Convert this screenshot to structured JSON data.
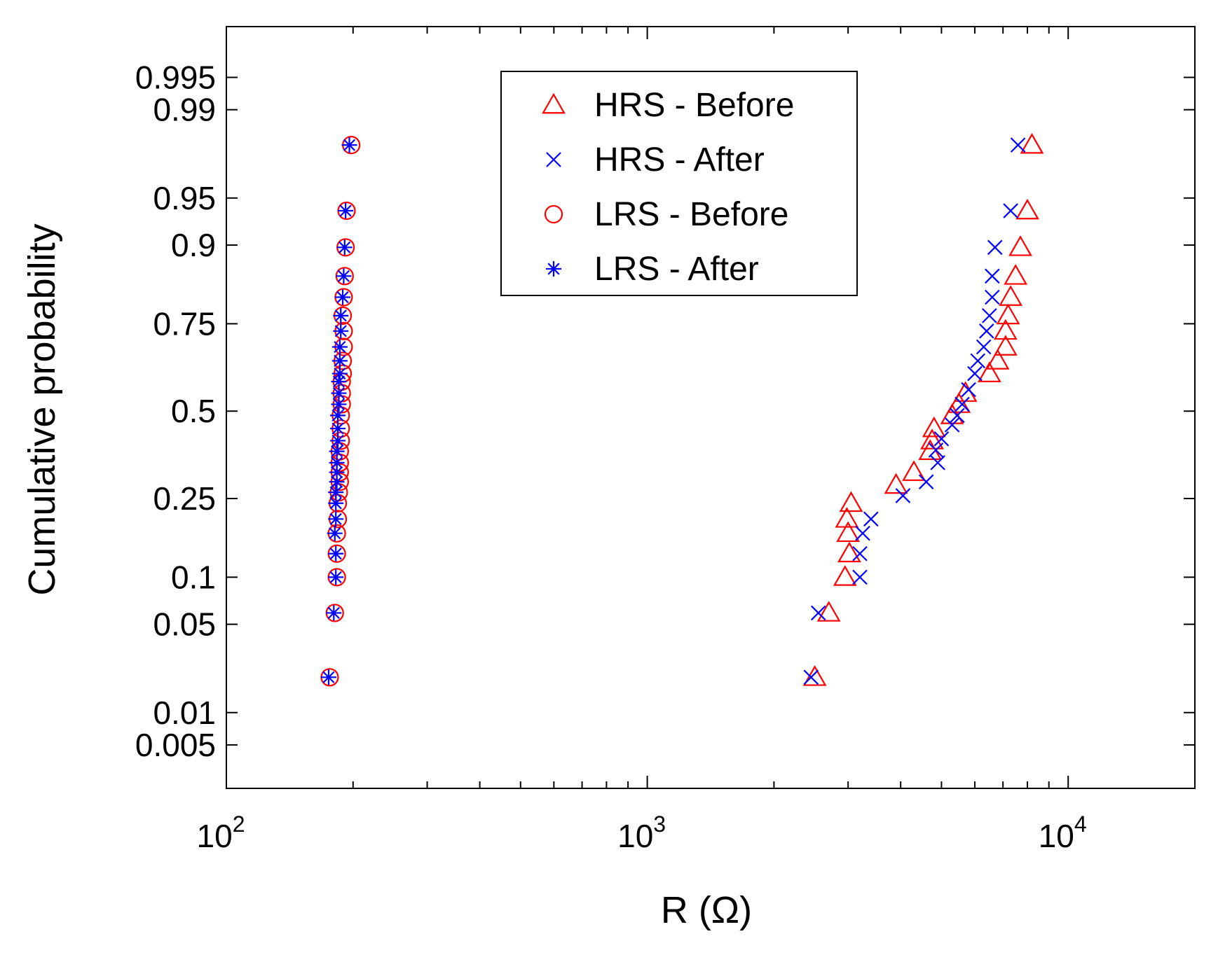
{
  "chart_data": {
    "type": "scatter",
    "title": "",
    "xlabel": "R (Ω)",
    "ylabel": "Cumulative probability",
    "xscale": "log",
    "yscale": "normal-probability",
    "xlim": [
      100,
      20000
    ],
    "ylim": [
      0.0018,
      0.9985
    ],
    "x_ticks": [
      {
        "value": 100,
        "base": "10",
        "exp": "2"
      },
      {
        "value": 1000,
        "base": "10",
        "exp": "3"
      },
      {
        "value": 10000,
        "base": "10",
        "exp": "4"
      }
    ],
    "y_ticks": [
      {
        "value": 0.005,
        "label": "0.005"
      },
      {
        "value": 0.01,
        "label": "0.01"
      },
      {
        "value": 0.05,
        "label": "0.05"
      },
      {
        "value": 0.1,
        "label": "0.1"
      },
      {
        "value": 0.25,
        "label": "0.25"
      },
      {
        "value": 0.5,
        "label": "0.5"
      },
      {
        "value": 0.75,
        "label": "0.75"
      },
      {
        "value": 0.9,
        "label": "0.9"
      },
      {
        "value": 0.95,
        "label": "0.95"
      },
      {
        "value": 0.99,
        "label": "0.99"
      },
      {
        "value": 0.995,
        "label": "0.995"
      }
    ],
    "legend_position": "top-center",
    "series": [
      {
        "name": "HRS - Before",
        "marker": "triangle",
        "color": "#ff0000",
        "points": [
          [
            2500,
            0.02
          ],
          [
            2700,
            0.0597
          ],
          [
            2950,
            0.1
          ],
          [
            3020,
            0.1357
          ],
          [
            3000,
            0.1729
          ],
          [
            2980,
            0.2025
          ],
          [
            3050,
            0.2386
          ],
          [
            3900,
            0.2841
          ],
          [
            4300,
            0.3185
          ],
          [
            4700,
            0.3783
          ],
          [
            4750,
            0.4098
          ],
          [
            4800,
            0.4466
          ],
          [
            5300,
            0.4867
          ],
          [
            5500,
            0.5211
          ],
          [
            5700,
            0.5551
          ],
          [
            6500,
            0.6141
          ],
          [
            6800,
            0.6511
          ],
          [
            7100,
            0.6899
          ],
          [
            7100,
            0.7318
          ],
          [
            7200,
            0.7694
          ],
          [
            7300,
            0.8104
          ],
          [
            7500,
            0.8514
          ],
          [
            7700,
            0.8969
          ],
          [
            8000,
            0.939
          ],
          [
            8200,
            0.98
          ]
        ]
      },
      {
        "name": "HRS - After",
        "marker": "x",
        "color": "#0000ff",
        "points": [
          [
            2450,
            0.02
          ],
          [
            2550,
            0.0597
          ],
          [
            3200,
            0.1
          ],
          [
            3200,
            0.1357
          ],
          [
            3250,
            0.1729
          ],
          [
            3400,
            0.2025
          ],
          [
            4050,
            0.2571
          ],
          [
            4600,
            0.2927
          ],
          [
            4900,
            0.3454
          ],
          [
            4850,
            0.3818
          ],
          [
            5000,
            0.4154
          ],
          [
            5300,
            0.4577
          ],
          [
            5450,
            0.4867
          ],
          [
            5600,
            0.5211
          ],
          [
            5800,
            0.5658
          ],
          [
            6000,
            0.6141
          ],
          [
            6100,
            0.6511
          ],
          [
            6300,
            0.6899
          ],
          [
            6400,
            0.7318
          ],
          [
            6500,
            0.7694
          ],
          [
            6600,
            0.8104
          ],
          [
            6600,
            0.8514
          ],
          [
            6700,
            0.8969
          ],
          [
            7300,
            0.939
          ],
          [
            7600,
            0.98
          ]
        ]
      },
      {
        "name": "LRS - Before",
        "marker": "circle",
        "color": "#ff0000",
        "points": [
          [
            176,
            0.02
          ],
          [
            181,
            0.0597
          ],
          [
            183,
            0.1
          ],
          [
            183,
            0.1357
          ],
          [
            183,
            0.1729
          ],
          [
            184,
            0.2025
          ],
          [
            184,
            0.2386
          ],
          [
            185,
            0.2656
          ],
          [
            186,
            0.2927
          ],
          [
            186,
            0.3185
          ],
          [
            186,
            0.3454
          ],
          [
            186,
            0.3783
          ],
          [
            187,
            0.4098
          ],
          [
            187,
            0.4466
          ],
          [
            187,
            0.4867
          ],
          [
            188,
            0.5211
          ],
          [
            188,
            0.5551
          ],
          [
            188,
            0.5903
          ],
          [
            189,
            0.6141
          ],
          [
            189,
            0.6511
          ],
          [
            190,
            0.6899
          ],
          [
            190,
            0.7318
          ],
          [
            189,
            0.7694
          ],
          [
            190,
            0.8104
          ],
          [
            191,
            0.8514
          ],
          [
            192,
            0.8969
          ],
          [
            193,
            0.939
          ],
          [
            198,
            0.98
          ]
        ]
      },
      {
        "name": "LRS - After",
        "marker": "asterisk",
        "color": "#0000ff",
        "points": [
          [
            175,
            0.02
          ],
          [
            180,
            0.0597
          ],
          [
            182,
            0.1
          ],
          [
            182,
            0.1357
          ],
          [
            181,
            0.1729
          ],
          [
            182,
            0.2025
          ],
          [
            182,
            0.2386
          ],
          [
            182,
            0.2656
          ],
          [
            183,
            0.2927
          ],
          [
            183,
            0.3185
          ],
          [
            183,
            0.3454
          ],
          [
            183,
            0.3783
          ],
          [
            184,
            0.4098
          ],
          [
            184,
            0.4466
          ],
          [
            184,
            0.4867
          ],
          [
            185,
            0.5211
          ],
          [
            185,
            0.5551
          ],
          [
            185,
            0.5903
          ],
          [
            186,
            0.6141
          ],
          [
            186,
            0.6511
          ],
          [
            186,
            0.6899
          ],
          [
            187,
            0.7318
          ],
          [
            187,
            0.7694
          ],
          [
            189,
            0.8104
          ],
          [
            190,
            0.8514
          ],
          [
            191,
            0.8969
          ],
          [
            192,
            0.939
          ],
          [
            196,
            0.98
          ]
        ]
      }
    ]
  }
}
